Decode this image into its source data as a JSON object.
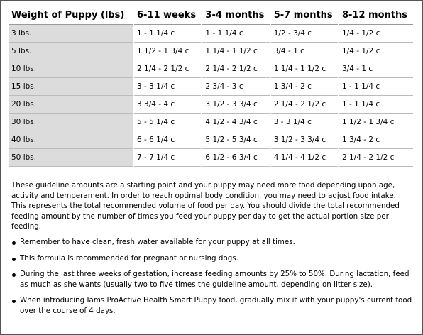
{
  "table": {
    "header": [
      "Weight of Puppy (lbs)",
      "6-11 weeks",
      "3-4 months",
      "5-7 months",
      "8-12 months"
    ],
    "rows": [
      [
        "3 lbs.",
        "1 - 1 1/4 c",
        "1 - 1 1/4 c",
        "1/2 - 3/4 c",
        "1/4 - 1/2 c"
      ],
      [
        "5 lbs.",
        "1 1/2 - 1 3/4 c",
        "1 1/4 - 1 1/2 c",
        "3/4 - 1 c",
        "1/4 - 1/2 c"
      ],
      [
        "10 lbs.",
        "2 1/4 - 2 1/2 c",
        "2 1/4 - 2 1/2 c",
        "1 1/4 - 1 1/2 c",
        "3/4 - 1 c"
      ],
      [
        "15 lbs.",
        "3 - 3 1/4 c",
        "2 3/4 - 3 c",
        "1 3/4 - 2 c",
        "1 - 1 1/4 c"
      ],
      [
        "20 lbs.",
        "3 3/4 - 4 c",
        "3 1/2 - 3 3/4 c",
        "2 1/4 - 2 1/2 c",
        "1 - 1 1/4 c"
      ],
      [
        "30 lbs.",
        "5 - 5 1/4 c",
        "4 1/2 - 4 3/4 c",
        "3 - 3 1/4 c",
        "1 1/2 - 1 3/4 c"
      ],
      [
        "40 lbs.",
        "6 - 6 1/4 c",
        "5 1/2 - 5 3/4 c",
        "3 1/2 - 3 3/4 c",
        "1 3/4 - 2 c"
      ],
      [
        "50 lbs.",
        "7 - 7 1/4 c",
        "6 1/2 - 6 3/4 c",
        "4 1/4 - 4 1/2 c",
        "2 1/4 - 2 1/2 c"
      ]
    ]
  },
  "paragraph": "These guideline amounts are a starting point and your puppy may need more food depending upon age, activity and temperament. In order to reach optimal body condition, you may need to adjust food intake. This represents the total recommended volume of food per day. You should divide the total recommended feeding amount by the number of times you feed your puppy per day to get the actual portion size per feeding.",
  "bullets": [
    "Remember to have clean, fresh water available for your puppy at all times.",
    "This formula is recommended for pregnant or nursing dogs.",
    "During the last three weeks of gestation, increase feeding amounts by 25% to 50%. During lactation, feed as much as she wants (usually two to five times the guideline amount, depending on litter size).",
    "When introducing Iams ProActive Health Smart Puppy food, gradually mix it with your puppy's current food over the course of 4 days."
  ]
}
